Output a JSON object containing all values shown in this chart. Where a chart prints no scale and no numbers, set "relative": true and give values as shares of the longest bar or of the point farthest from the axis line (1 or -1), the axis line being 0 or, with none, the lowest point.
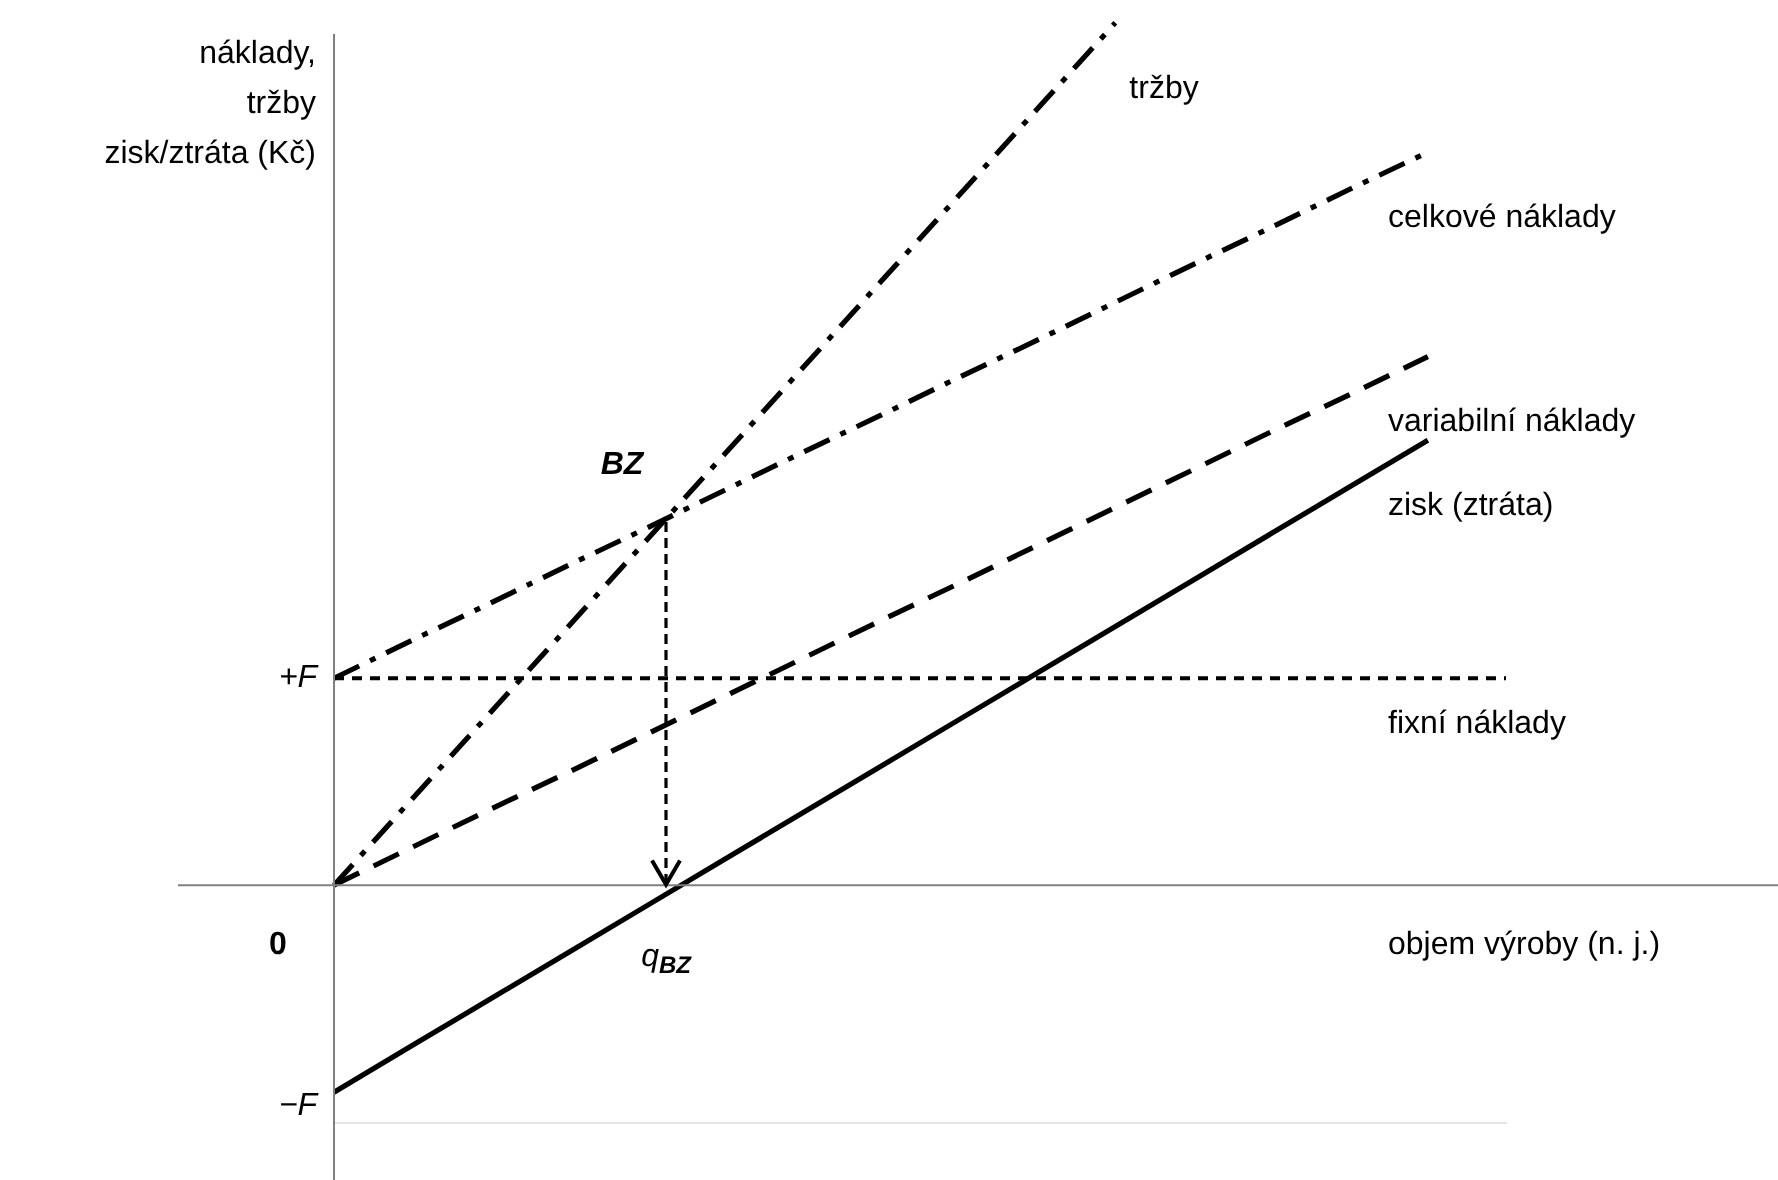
{
  "chart_data": {
    "type": "line",
    "relative": true,
    "ylabel": "náklady,\ntržby\nzisk/ztráta (Kč)",
    "xlabel": "objem výroby (n. j.)",
    "categories": [
      null,
      null,
      null,
      null,
      null,
      null,
      null,
      null,
      null,
      null,
      null,
      null,
      null,
      null,
      null,
      null
    ],
    "series": [
      {
        "name": "tržby",
        "color": "#000000",
        "line_style": "dashdot",
        "values": [
          0,
          0.1,
          0.2,
          0.3,
          0.4,
          0.5,
          0.6,
          0.7,
          0.8,
          0.9,
          1.0,
          null,
          null,
          null,
          null,
          null
        ]
      },
      {
        "name": "celkové náklady",
        "color": "#000000",
        "line_style": "dashdot",
        "values": [
          0.24,
          0.284,
          0.327,
          0.371,
          0.414,
          0.458,
          0.502,
          0.545,
          0.589,
          0.632,
          0.676,
          0.72,
          0.763,
          0.807,
          0.85,
          null
        ]
      },
      {
        "name": "variabilní náklady",
        "color": "#000000",
        "line_style": "dashed",
        "values": [
          0,
          0.044,
          0.088,
          0.131,
          0.175,
          0.219,
          0.263,
          0.307,
          0.35,
          0.394,
          0.438,
          0.482,
          0.526,
          0.569,
          0.613,
          null
        ]
      },
      {
        "name": "zisk (ztráta)",
        "color": "#000000",
        "line_style": "solid",
        "values": [
          -0.24,
          -0.186,
          -0.132,
          -0.078,
          -0.024,
          0.03,
          0.084,
          0.138,
          0.192,
          0.246,
          0.3,
          0.354,
          0.408,
          0.462,
          0.516,
          null
        ]
      },
      {
        "name": "fixní náklady",
        "color": "#000000",
        "line_style": "dotted",
        "values": [
          0.24,
          0.24,
          0.24,
          0.24,
          0.24,
          0.24,
          0.24,
          0.24,
          0.24,
          0.24,
          0.24,
          0.24,
          0.24,
          0.24,
          0.24,
          0.24
        ]
      }
    ],
    "annotations": [
      "+F",
      "0",
      "−F",
      "BZ",
      "q$_{BZ}$"
    ],
    "marker": "none",
    "legend": false
  }
}
